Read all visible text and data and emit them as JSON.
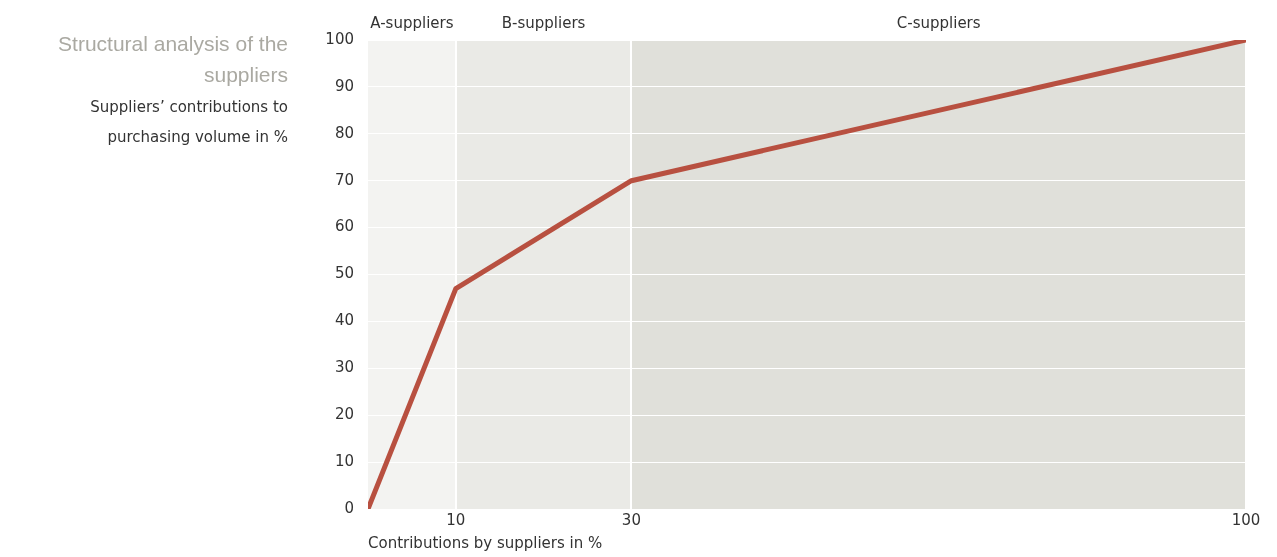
{
  "chart_data": {
    "type": "line",
    "title": "Structural analysis of the suppliers",
    "ylabel": "Suppliers’ contributions to purchasing volume in %",
    "xlabel": "Contributions by suppliers in %",
    "x": [
      0,
      10,
      30,
      100
    ],
    "values": [
      0,
      47,
      70,
      100
    ],
    "color": "#b85040",
    "marker": "none",
    "xlim": [
      0,
      100
    ],
    "xticks": [
      10,
      30,
      100
    ],
    "ylim": [
      0,
      100
    ],
    "yticks": [
      0,
      10,
      20,
      30,
      40,
      50,
      60,
      70,
      80,
      90,
      100
    ],
    "grid": true,
    "bands": [
      {
        "axis": "x",
        "from": 0,
        "to": 10,
        "label": "A-suppliers",
        "color": "#f3f3f1"
      },
      {
        "axis": "x",
        "from": 10,
        "to": 30,
        "label": "B-suppliers",
        "color": "#eaeae6"
      },
      {
        "axis": "x",
        "from": 30,
        "to": 100,
        "label": "C-suppliers",
        "color": "#e0e0da"
      }
    ]
  }
}
